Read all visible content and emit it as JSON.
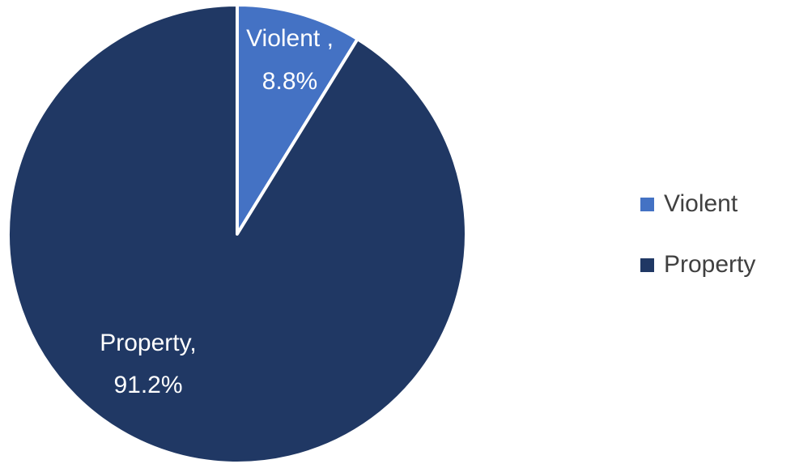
{
  "chart_data": {
    "type": "pie",
    "categories": [
      "Violent",
      "Property"
    ],
    "values": [
      8.8,
      91.2
    ],
    "unit": "%",
    "colors": [
      "#4472c4",
      "#203864"
    ],
    "data_labels": [
      {
        "line1": "Violent ,",
        "line2": "8.8%"
      },
      {
        "line1": "Property,",
        "line2": "91.2%"
      }
    ],
    "legend": {
      "placement": "right",
      "entries": [
        "Violent",
        "Property"
      ]
    },
    "start_angle_deg": 0,
    "direction": "clockwise"
  }
}
